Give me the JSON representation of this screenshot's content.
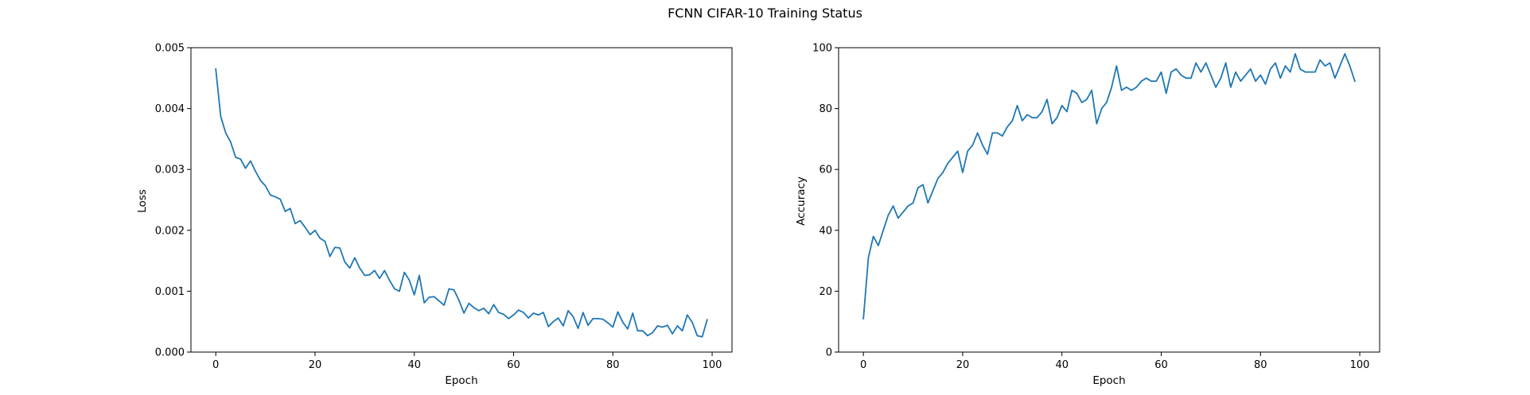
{
  "chart_data": {
    "suptitle": "FCNN CIFAR-10 Training Status",
    "series_color": "#1f77b4",
    "charts": [
      {
        "type": "line",
        "title": "",
        "xlabel": "Epoch",
        "ylabel": "Loss",
        "xlim": [
          -5,
          104
        ],
        "ylim": [
          0.0,
          0.005
        ],
        "xticks": [
          0,
          20,
          40,
          60,
          80,
          100
        ],
        "xtick_labels": [
          "0",
          "20",
          "40",
          "60",
          "80",
          "100"
        ],
        "yticks": [
          0.0,
          0.001,
          0.002,
          0.003,
          0.004,
          0.005
        ],
        "ytick_labels": [
          "0.000",
          "0.001",
          "0.002",
          "0.003",
          "0.004",
          "0.005"
        ],
        "grid": false,
        "series": [
          {
            "x": [
              0,
              1,
              2,
              3,
              4,
              5,
              6,
              7,
              8,
              9,
              10,
              11,
              12,
              13,
              14,
              15,
              16,
              17,
              18,
              19,
              20,
              21,
              22,
              23,
              24,
              25,
              26,
              27,
              28,
              29,
              30,
              31,
              32,
              33,
              34,
              35,
              36,
              37,
              38,
              39,
              40,
              41,
              42,
              43,
              44,
              45,
              46,
              47,
              48,
              49,
              50,
              51,
              52,
              53,
              54,
              55,
              56,
              57,
              58,
              59,
              60,
              61,
              62,
              63,
              64,
              65,
              66,
              67,
              68,
              69,
              70,
              71,
              72,
              73,
              74,
              75,
              76,
              77,
              78,
              79,
              80,
              81,
              82,
              83,
              84,
              85,
              86,
              87,
              88,
              89,
              90,
              91,
              92,
              93,
              94,
              95,
              96,
              97,
              98,
              99
            ],
            "values": [
              0.00465,
              0.00387,
              0.0036,
              0.00345,
              0.0032,
              0.00317,
              0.00302,
              0.00314,
              0.00297,
              0.00282,
              0.00273,
              0.00258,
              0.00255,
              0.00251,
              0.00231,
              0.00236,
              0.00211,
              0.00216,
              0.00205,
              0.00193,
              0.002,
              0.00187,
              0.00182,
              0.00157,
              0.00172,
              0.00171,
              0.00148,
              0.00138,
              0.00155,
              0.00138,
              0.00126,
              0.00127,
              0.00134,
              0.00121,
              0.00134,
              0.00118,
              0.00104,
              0.001,
              0.00131,
              0.00118,
              0.00094,
              0.00126,
              0.00081,
              0.0009,
              0.00091,
              0.00084,
              0.00077,
              0.00104,
              0.00102,
              0.00085,
              0.00064,
              0.0008,
              0.00073,
              0.00068,
              0.00072,
              0.00063,
              0.00078,
              0.00065,
              0.00062,
              0.00055,
              0.00061,
              0.00069,
              0.00065,
              0.00056,
              0.00064,
              0.00061,
              0.00065,
              0.00042,
              0.0005,
              0.00056,
              0.00043,
              0.00068,
              0.00058,
              0.00039,
              0.00065,
              0.00044,
              0.00055,
              0.00055,
              0.00054,
              0.00048,
              0.00041,
              0.00066,
              0.00049,
              0.00038,
              0.00064,
              0.00035,
              0.00035,
              0.00027,
              0.00032,
              0.00043,
              0.00041,
              0.00044,
              0.0003,
              0.00043,
              0.00035,
              0.00061,
              0.00049,
              0.00027,
              0.00025,
              0.00053
            ]
          }
        ]
      },
      {
        "type": "line",
        "title": "",
        "xlabel": "Epoch",
        "ylabel": "Accuracy",
        "xlim": [
          -5,
          104
        ],
        "ylim": [
          0,
          100
        ],
        "xticks": [
          0,
          20,
          40,
          60,
          80,
          100
        ],
        "xtick_labels": [
          "0",
          "20",
          "40",
          "60",
          "80",
          "100"
        ],
        "yticks": [
          0,
          20,
          40,
          60,
          80,
          100
        ],
        "ytick_labels": [
          "0",
          "20",
          "40",
          "60",
          "80",
          "100"
        ],
        "grid": false,
        "series": [
          {
            "x": [
              0,
              1,
              2,
              3,
              4,
              5,
              6,
              7,
              8,
              9,
              10,
              11,
              12,
              13,
              14,
              15,
              16,
              17,
              18,
              19,
              20,
              21,
              22,
              23,
              24,
              25,
              26,
              27,
              28,
              29,
              30,
              31,
              32,
              33,
              34,
              35,
              36,
              37,
              38,
              39,
              40,
              41,
              42,
              43,
              44,
              45,
              46,
              47,
              48,
              49,
              50,
              51,
              52,
              53,
              54,
              55,
              56,
              57,
              58,
              59,
              60,
              61,
              62,
              63,
              64,
              65,
              66,
              67,
              68,
              69,
              70,
              71,
              72,
              73,
              74,
              75,
              76,
              77,
              78,
              79,
              80,
              81,
              82,
              83,
              84,
              85,
              86,
              87,
              88,
              89,
              90,
              91,
              92,
              93,
              94,
              95,
              96,
              97,
              98,
              99
            ],
            "values": [
              11,
              31,
              38,
              35,
              40,
              45,
              48,
              44,
              46,
              48,
              49,
              54,
              55,
              49,
              53,
              57,
              59,
              62,
              64,
              66,
              59,
              66,
              68,
              72,
              68,
              65,
              72,
              72,
              71,
              74,
              76,
              81,
              76,
              78,
              77,
              77,
              79,
              83,
              75,
              77,
              81,
              79,
              86,
              85,
              82,
              83,
              86,
              75,
              80,
              82,
              87,
              94,
              86,
              87,
              86,
              87,
              89,
              90,
              89,
              89,
              92,
              85,
              92,
              93,
              91,
              90,
              90,
              95,
              92,
              95,
              91,
              87,
              90,
              95,
              87,
              92,
              89,
              91,
              93,
              89,
              91,
              88,
              93,
              95,
              90,
              94,
              92,
              98,
              93,
              92,
              92,
              92,
              96,
              94,
              95,
              90,
              94,
              98,
              94,
              89
            ]
          }
        ]
      }
    ]
  }
}
